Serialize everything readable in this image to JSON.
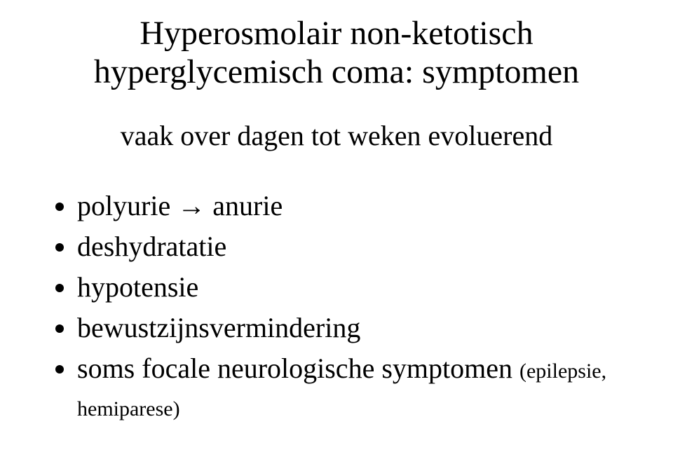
{
  "title_line1": "Hyperosmolair non-ketotisch",
  "title_line2": "hyperglycemisch coma: symptomen",
  "subtitle": "vaak over dagen tot weken evoluerend",
  "bullets": [
    {
      "text": "polyurie → anurie"
    },
    {
      "text": "deshydratatie"
    },
    {
      "text": "hypotensie"
    },
    {
      "text": "bewustzijnsvermindering"
    },
    {
      "text": "soms focale neurologische symptomen ",
      "sub": "(epilepsie, hemiparese)"
    }
  ]
}
